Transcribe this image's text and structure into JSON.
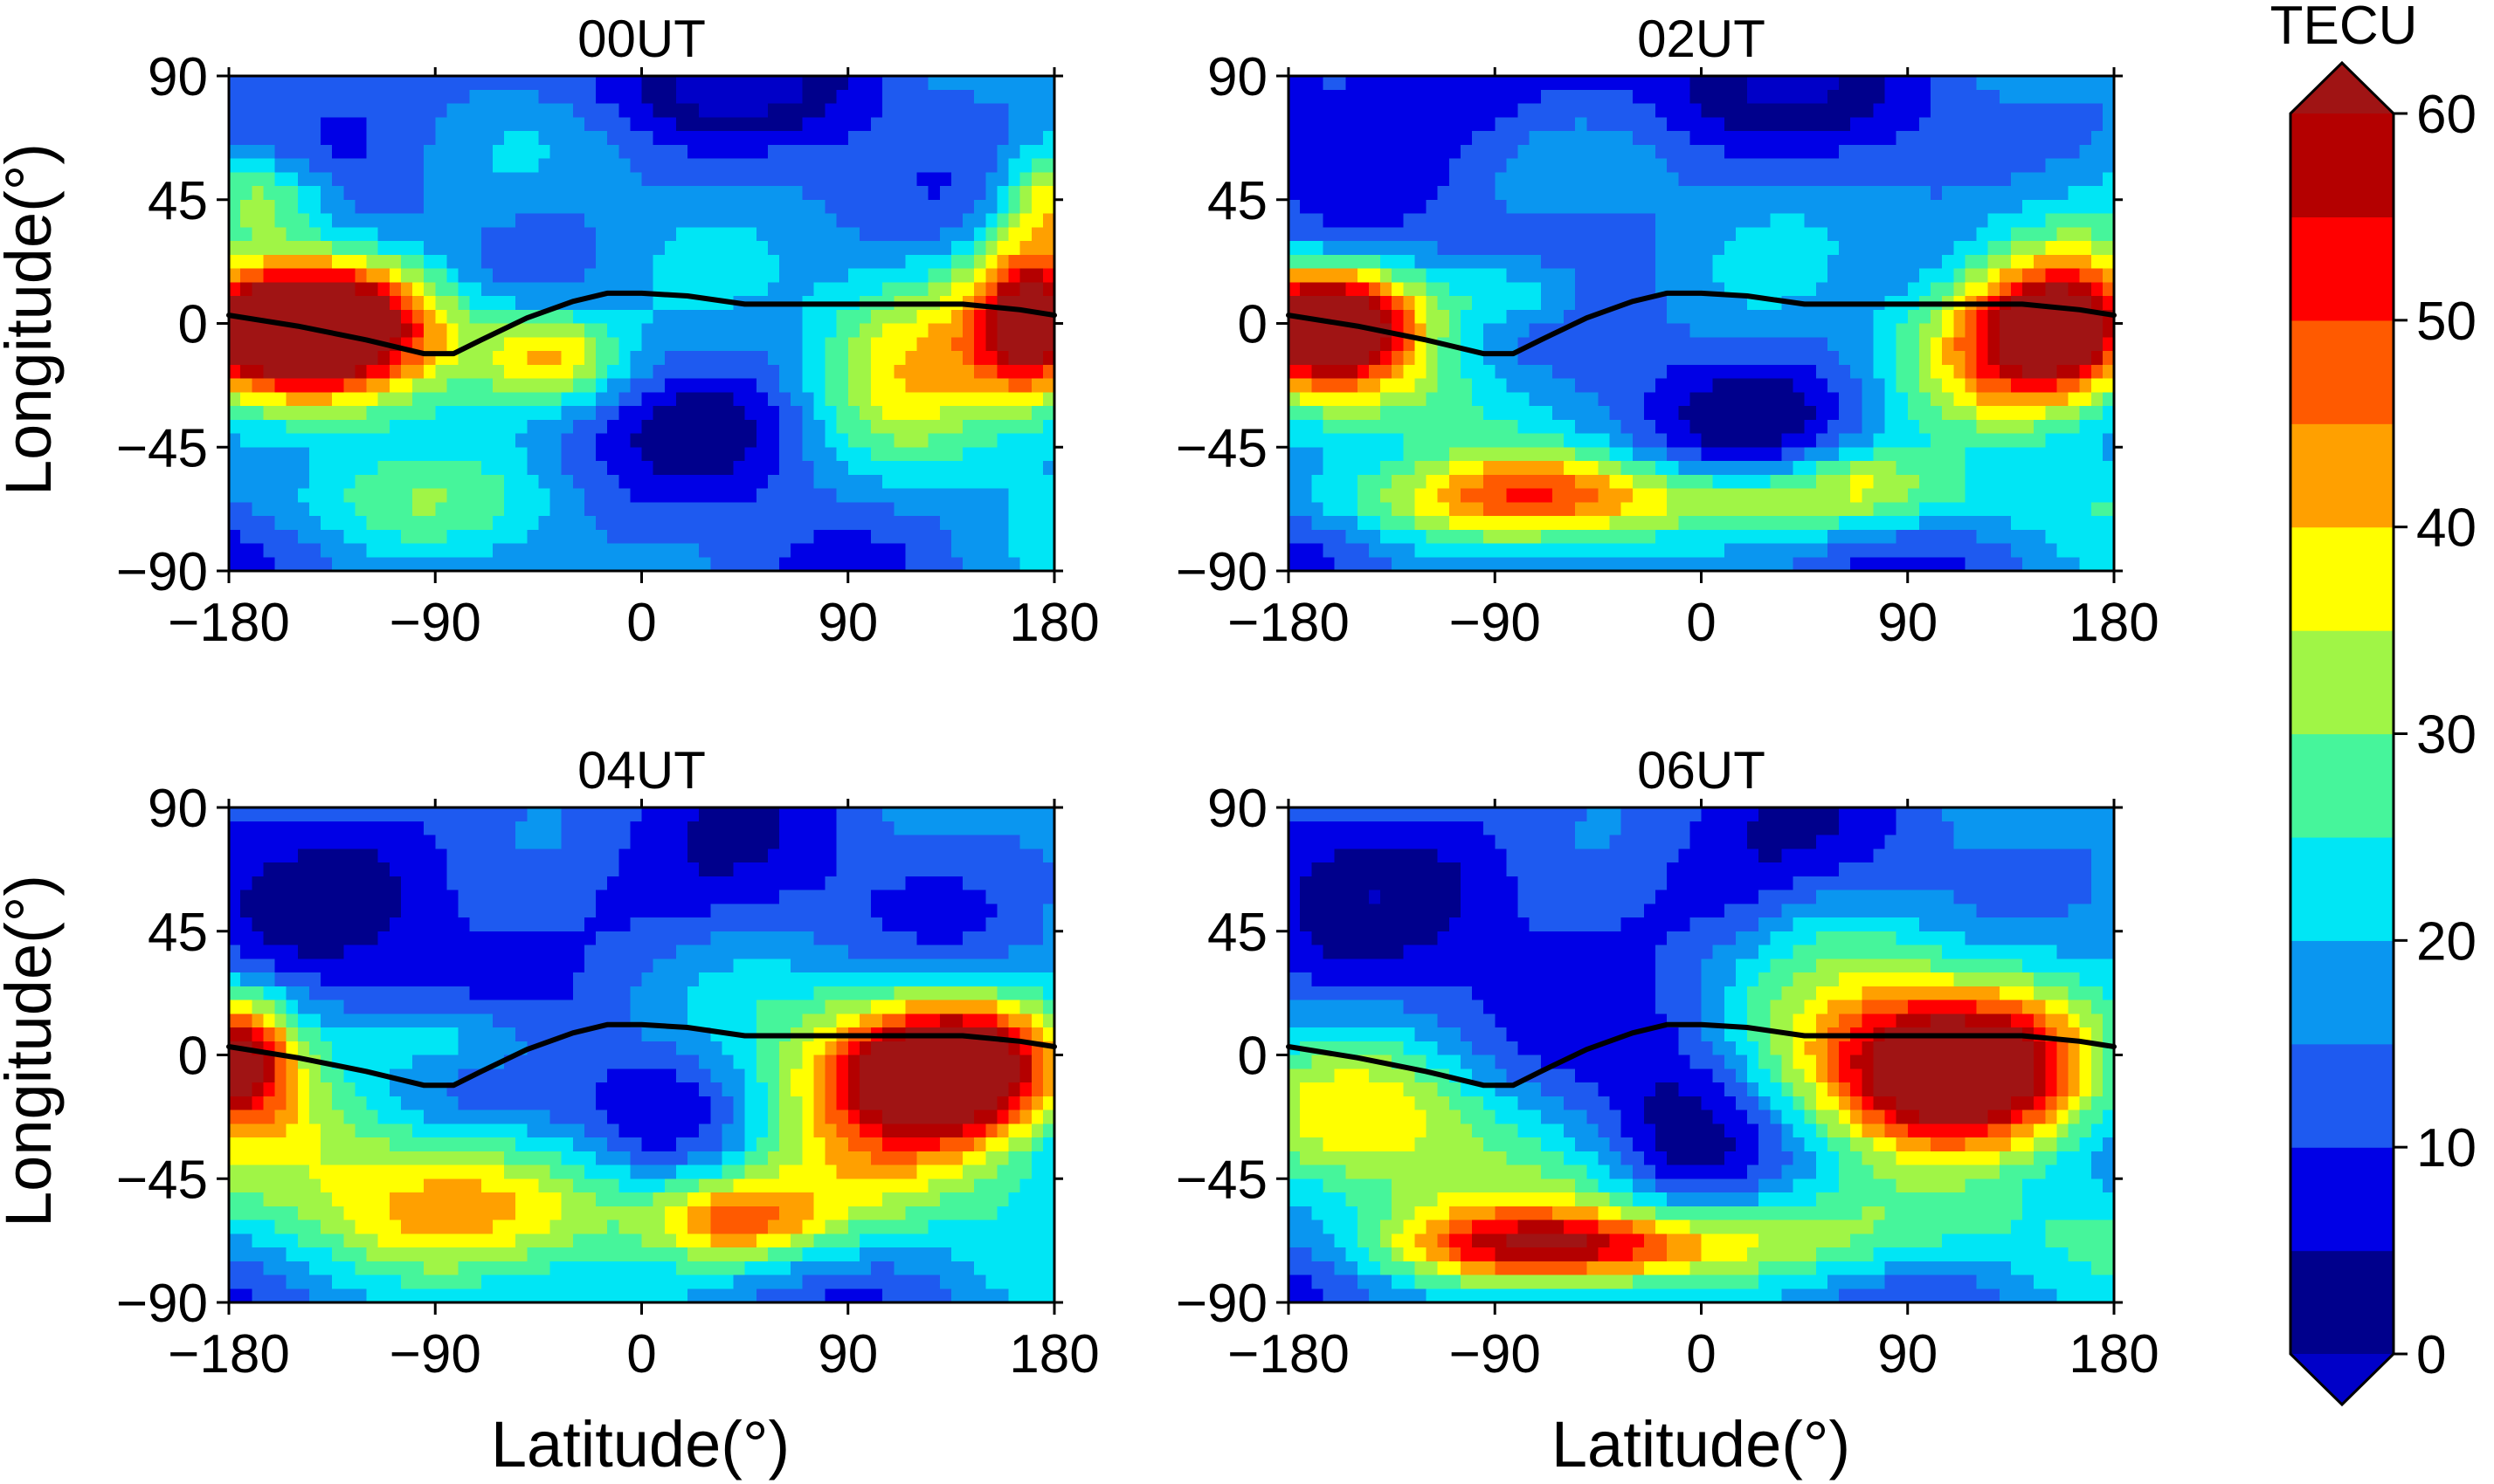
{
  "chart_data": {
    "type": "heatmap",
    "subtype": "filled-contour",
    "xlabel": "Latitude(°)",
    "ylabel": "Longitude(°)",
    "xlim": [
      -180,
      180
    ],
    "ylim": [
      -90,
      90
    ],
    "xticks": [
      -180,
      -90,
      0,
      90,
      180
    ],
    "yticks": [
      90,
      45,
      0,
      -45,
      -90
    ],
    "xtick_labels": [
      "−180",
      "−90",
      "0",
      "90",
      "180"
    ],
    "ytick_labels": [
      "90",
      "45",
      "0",
      "−45",
      "−90"
    ],
    "colorbar": {
      "title": "TECU",
      "min": 0,
      "max": 60,
      "step": 5,
      "tick_values": [
        0,
        10,
        20,
        30,
        40,
        50,
        60
      ],
      "tick_labels": [
        "0",
        "10",
        "20",
        "30",
        "40",
        "50",
        "60"
      ],
      "extend": "both",
      "colors": [
        "#00008C",
        "#0000E6",
        "#1E5AF0",
        "#0A96F0",
        "#00E6F5",
        "#46F59B",
        "#A0F546",
        "#FFFF00",
        "#FFA000",
        "#FF5A00",
        "#FF0000",
        "#B40000"
      ],
      "under_color": "#0000C8",
      "over_color": "#A01414"
    },
    "equator_line": {
      "color": "#000000",
      "points": [
        [
          -180,
          3
        ],
        [
          -150,
          -1
        ],
        [
          -120,
          -6
        ],
        [
          -95,
          -11
        ],
        [
          -82,
          -11
        ],
        [
          -70,
          -6
        ],
        [
          -50,
          2
        ],
        [
          -30,
          8
        ],
        [
          -15,
          11
        ],
        [
          0,
          11
        ],
        [
          20,
          10
        ],
        [
          45,
          7
        ],
        [
          90,
          7
        ],
        [
          140,
          7
        ],
        [
          165,
          5
        ],
        [
          180,
          3
        ]
      ]
    },
    "panels": [
      {
        "title": "00UT",
        "blobs": [
          {
            "x": -150,
            "y": 0,
            "sx": 38,
            "sy": 16,
            "a": 62
          },
          {
            "x": 172,
            "y": 0,
            "sx": 20,
            "sy": 20,
            "a": 56
          },
          {
            "x": -110,
            "y": -8,
            "sx": 40,
            "sy": 20,
            "a": 18
          },
          {
            "x": -40,
            "y": -12,
            "sx": 22,
            "sy": 12,
            "a": 26
          },
          {
            "x": -165,
            "y": 45,
            "sx": 22,
            "sy": 12,
            "a": 22
          },
          {
            "x": 175,
            "y": 45,
            "sx": 14,
            "sy": 14,
            "a": 18
          },
          {
            "x": 120,
            "y": -10,
            "sx": 30,
            "sy": 30,
            "a": 20
          },
          {
            "x": -120,
            "y": -65,
            "sx": 70,
            "sy": 12,
            "a": 9
          },
          {
            "x": 30,
            "y": 85,
            "sx": 70,
            "sy": 12,
            "a": -10
          },
          {
            "x": 40,
            "y": -40,
            "sx": 30,
            "sy": 15,
            "a": -8
          }
        ]
      },
      {
        "title": "02UT",
        "blobs": [
          {
            "x": -165,
            "y": 0,
            "sx": 28,
            "sy": 14,
            "a": 62
          },
          {
            "x": 160,
            "y": 0,
            "sx": 28,
            "sy": 18,
            "a": 48
          },
          {
            "x": 135,
            "y": -10,
            "sx": 35,
            "sy": 22,
            "a": 20
          },
          {
            "x": -30,
            "y": -65,
            "sx": 110,
            "sy": 10,
            "a": 24
          },
          {
            "x": -70,
            "y": -55,
            "sx": 40,
            "sy": 10,
            "a": 10
          },
          {
            "x": 70,
            "y": -55,
            "sx": 20,
            "sy": 8,
            "a": 10
          },
          {
            "x": -80,
            "y": 10,
            "sx": 25,
            "sy": 10,
            "a": 14
          },
          {
            "x": -120,
            "y": -25,
            "sx": 45,
            "sy": 15,
            "a": 12
          },
          {
            "x": 140,
            "y": 40,
            "sx": 40,
            "sy": 15,
            "a": 10
          },
          {
            "x": -30,
            "y": 85,
            "sx": 100,
            "sy": 15,
            "a": -10
          },
          {
            "x": 30,
            "y": -30,
            "sx": 40,
            "sy": 15,
            "a": -8
          }
        ]
      },
      {
        "title": "04UT",
        "blobs": [
          {
            "x": 140,
            "y": -5,
            "sx": 35,
            "sy": 18,
            "a": 56
          },
          {
            "x": -178,
            "y": 0,
            "sx": 18,
            "sy": 16,
            "a": 46
          },
          {
            "x": 100,
            "y": -10,
            "sx": 40,
            "sy": 30,
            "a": 18
          },
          {
            "x": 40,
            "y": -60,
            "sx": 25,
            "sy": 10,
            "a": 22
          },
          {
            "x": -60,
            "y": -55,
            "sx": 130,
            "sy": 18,
            "a": 22
          },
          {
            "x": -80,
            "y": 5,
            "sx": 30,
            "sy": 10,
            "a": 14
          },
          {
            "x": -150,
            "y": -25,
            "sx": 40,
            "sy": 15,
            "a": 10
          },
          {
            "x": -60,
            "y": 60,
            "sx": 100,
            "sy": 25,
            "a": -8
          },
          {
            "x": 10,
            "y": -20,
            "sx": 25,
            "sy": 20,
            "a": -10
          }
        ]
      },
      {
        "title": "06UT",
        "blobs": [
          {
            "x": 110,
            "y": -5,
            "sx": 45,
            "sy": 20,
            "a": 58
          },
          {
            "x": -60,
            "y": -70,
            "sx": 50,
            "sy": 8,
            "a": 26
          },
          {
            "x": 0,
            "y": -65,
            "sx": 110,
            "sy": 14,
            "a": 20
          },
          {
            "x": 120,
            "y": 30,
            "sx": 40,
            "sy": 25,
            "a": 12
          },
          {
            "x": -150,
            "y": -20,
            "sx": 40,
            "sy": 20,
            "a": 14
          },
          {
            "x": -100,
            "y": -30,
            "sx": 50,
            "sy": 20,
            "a": 10
          },
          {
            "x": -60,
            "y": 60,
            "sx": 120,
            "sy": 25,
            "a": -8
          },
          {
            "x": -10,
            "y": -20,
            "sx": 25,
            "sy": 25,
            "a": -12
          },
          {
            "x": 60,
            "y": 40,
            "sx": 30,
            "sy": 20,
            "a": 8
          }
        ]
      }
    ]
  }
}
